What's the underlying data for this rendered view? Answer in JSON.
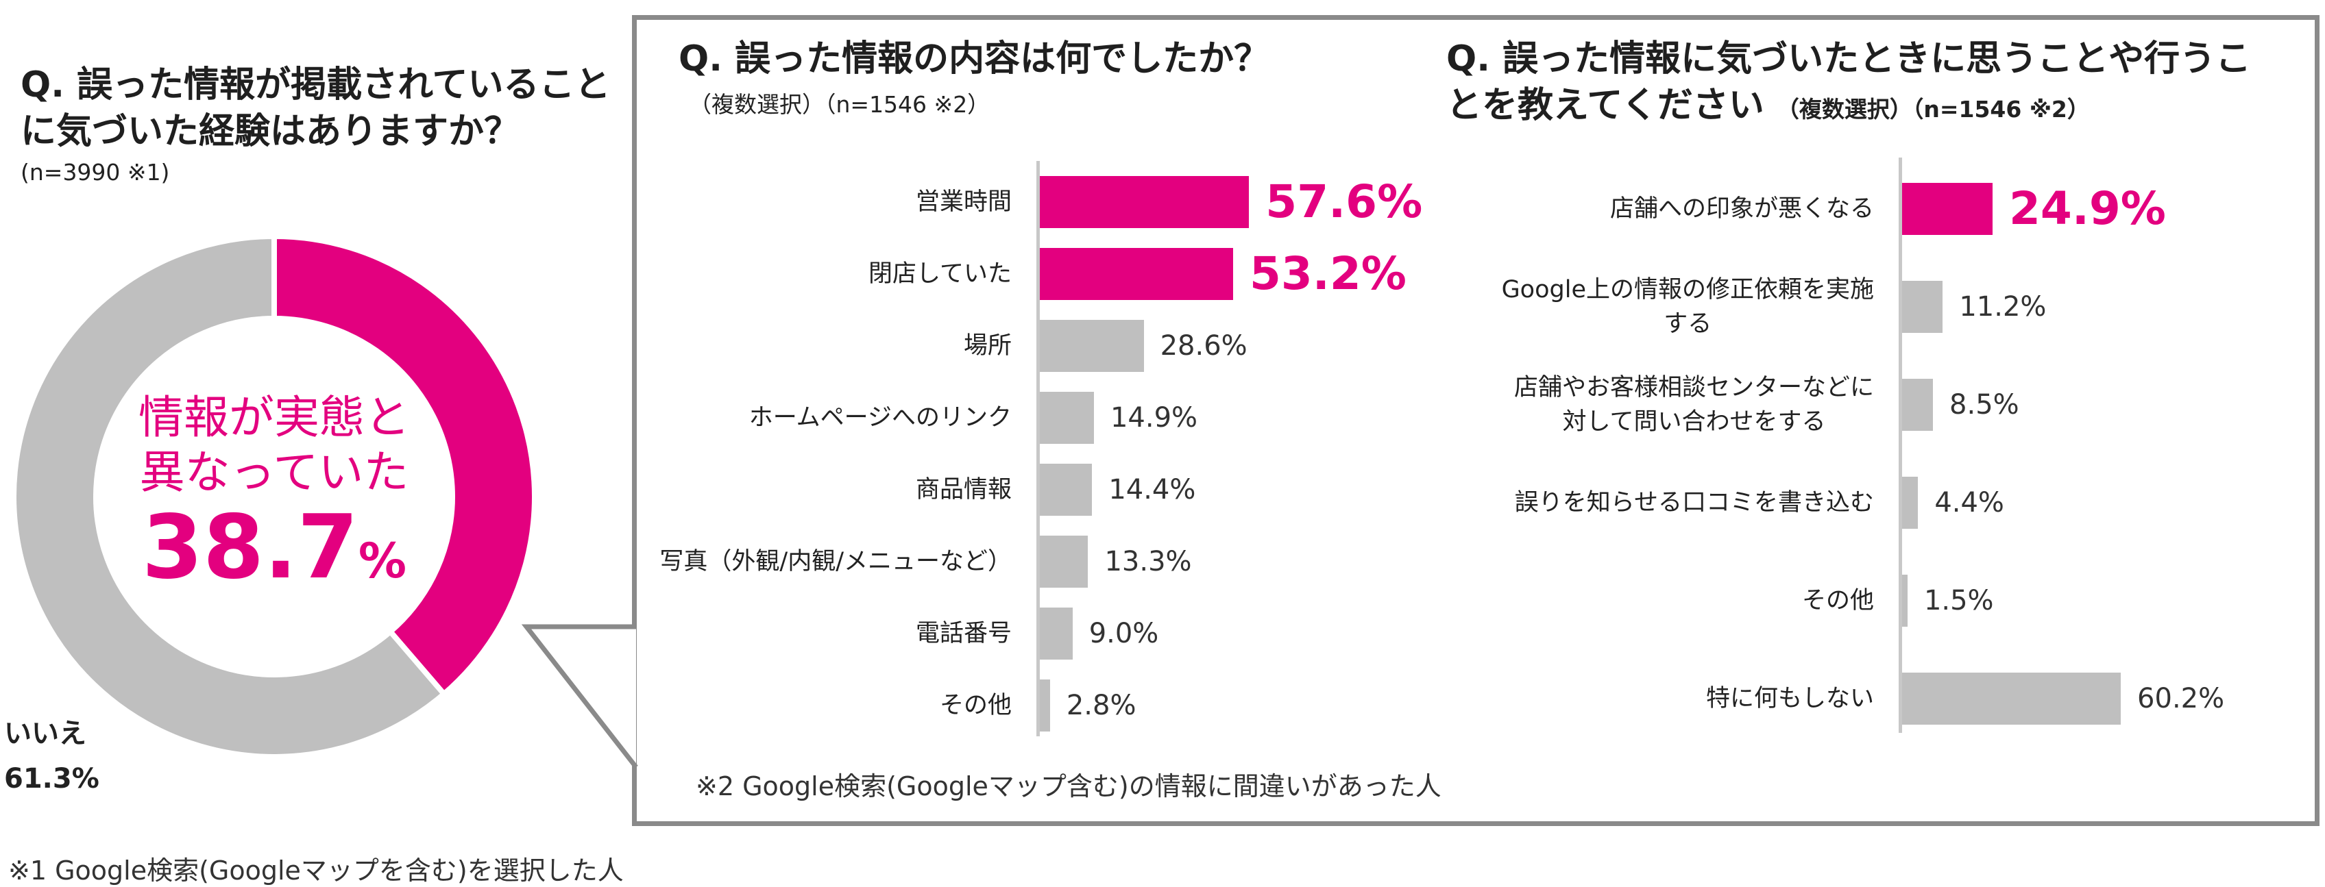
{
  "left": {
    "question": "Q. 誤った情報が掲載されていることに気づいた経験はありますか？",
    "question_line1": "Q. 誤った情報が掲載されていること",
    "question_line2": "に気づいた経験はありますか？",
    "n": "(n=3990 ※1)",
    "center_line1": "情報が実態と",
    "center_line2": "異なっていた",
    "center_value": "38.7",
    "center_unit": "%",
    "no_label": "いいえ",
    "no_value": "61.3%",
    "footnote": "※1 Google検索(Googleマップを含む)を選択した人"
  },
  "middle": {
    "question": "Q. 誤った情報の内容は何でしたか？",
    "sub": "（複数選択）（n=1546 ※2）",
    "footnote": "※2 Google検索(Googleマップ含む)の情報に間違いがあった人"
  },
  "right": {
    "question_line1": "Q. 誤った情報に気づいたときに思うことや行うこ",
    "question_line2": "とを教えてください",
    "sub": "（複数選択）（n=1546 ※2）"
  },
  "colors": {
    "accent": "#e3007f",
    "gray": "#bfbfbf",
    "border": "#8a8a8a"
  },
  "chart_data": [
    {
      "type": "pie",
      "title": "Q. 誤った情報が掲載されていることに気づいた経験はありますか？",
      "categories": [
        "情報が実態と異なっていた",
        "いいえ"
      ],
      "values": [
        38.7,
        61.3
      ],
      "unit": "%",
      "donut": true
    },
    {
      "type": "bar",
      "orientation": "horizontal",
      "title": "Q. 誤った情報の内容は何でしたか？",
      "categories": [
        "営業時間",
        "閉店していた",
        "場所",
        "ホームページへのリンク",
        "商品情報",
        "写真（外観/内観/メニューなど）",
        "電話番号",
        "その他"
      ],
      "values": [
        57.6,
        53.2,
        28.6,
        14.9,
        14.4,
        13.3,
        9.0,
        2.8
      ],
      "labels": [
        "57.6%",
        "53.2%",
        "28.6%",
        "14.9%",
        "14.4%",
        "13.3%",
        "9.0%",
        "2.8%"
      ],
      "highlight": [
        true,
        true,
        false,
        false,
        false,
        false,
        false,
        false
      ],
      "xlim": [
        0,
        100
      ]
    },
    {
      "type": "bar",
      "orientation": "horizontal",
      "title": "Q. 誤った情報に気づいたときに思うことや行うことを教えてください",
      "categories": [
        "店舗への印象が悪くなる",
        "Google上の情報の修正依頼を実施する",
        "店舗やお客様相談センターなどに対して問い合わせをする",
        "誤りを知らせる口コミを書き込む",
        "その他",
        "特に何もしない"
      ],
      "label_lines": [
        [
          "店舗への印象が悪くなる"
        ],
        [
          "Google上の情報の修正依頼を実施",
          "する"
        ],
        [
          "店舗やお客様相談センターなどに",
          "対して問い合わせをする"
        ],
        [
          "誤りを知らせる口コミを書き込む"
        ],
        [
          "その他"
        ],
        [
          "特に何もしない"
        ]
      ],
      "values": [
        24.9,
        11.2,
        8.5,
        4.4,
        1.5,
        60.2
      ],
      "labels": [
        "24.9%",
        "11.2%",
        "8.5%",
        "4.4%",
        "1.5%",
        "60.2%"
      ],
      "highlight": [
        true,
        false,
        false,
        false,
        false,
        false
      ],
      "xlim": [
        0,
        100
      ]
    }
  ]
}
